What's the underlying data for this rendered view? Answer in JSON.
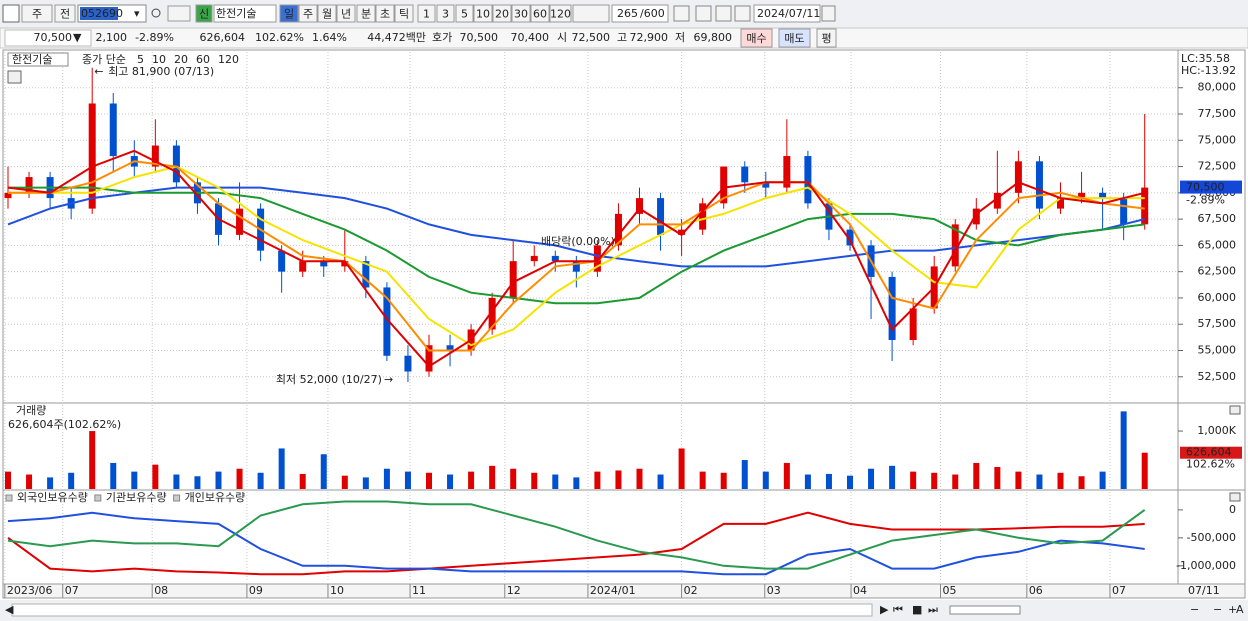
{
  "toolbar": {
    "market": "주",
    "scope": "전",
    "code": "052690",
    "badge": "신",
    "name": "한전기술",
    "periods": [
      "일",
      "주",
      "월",
      "년",
      "분",
      "초",
      "틱"
    ],
    "intervals": [
      "1",
      "3",
      "5",
      "10",
      "20",
      "30",
      "60",
      "120"
    ],
    "count": "265",
    "max": "/600",
    "date": "2024/07/11"
  },
  "info_bar": {
    "price": "70,500",
    "direction": "▼",
    "change": "2,100",
    "change_rate": "-2.89%",
    "volume": "626,604",
    "volume_ratio": "102.62%",
    "turnover": "1.64%",
    "amount": "44,472백만",
    "quote_label": "호가",
    "ask": "70,500",
    "bid": "70,400",
    "open_label": "시",
    "open": "72,500",
    "high_label": "고",
    "high": "72,900",
    "low_label": "저",
    "low": "69,800",
    "buy": "매수",
    "sell": "매도",
    "avg": "평"
  },
  "chart_data": [
    {
      "type": "candlestick",
      "title": "한전기술",
      "ma_label": "종가 단순",
      "up_color": "#e00000",
      "down_color": "#0050d0",
      "grid": true,
      "candles": [
        [
          69500,
          72500,
          68500,
          70000
        ],
        [
          70000,
          72000,
          69500,
          71500
        ],
        [
          71500,
          72000,
          68500,
          69500
        ],
        [
          69500,
          70500,
          67500,
          68500
        ],
        [
          68500,
          81900,
          68000,
          78500
        ],
        [
          78500,
          79500,
          72000,
          73500
        ],
        [
          73500,
          75000,
          71500,
          72500
        ],
        [
          72500,
          77000,
          72000,
          74500
        ],
        [
          74500,
          75000,
          70500,
          71000
        ],
        [
          71000,
          71500,
          68000,
          69000
        ],
        [
          69000,
          69500,
          65000,
          66000
        ],
        [
          66000,
          71000,
          65500,
          68500
        ],
        [
          68500,
          69000,
          63500,
          64500
        ],
        [
          64500,
          65000,
          60500,
          62500
        ],
        [
          62500,
          64500,
          62000,
          63500
        ],
        [
          63500,
          64000,
          62000,
          63000
        ],
        [
          63000,
          66500,
          62500,
          63500
        ],
        [
          63500,
          64000,
          60000,
          61000
        ],
        [
          61000,
          61500,
          54000,
          54500
        ],
        [
          54500,
          55500,
          52000,
          53000
        ],
        [
          53000,
          56500,
          52500,
          55500
        ],
        [
          55500,
          56500,
          53500,
          55000
        ],
        [
          55000,
          57500,
          54500,
          57000
        ],
        [
          57000,
          60500,
          56500,
          60000
        ],
        [
          60000,
          65500,
          59500,
          63500
        ],
        [
          63500,
          65000,
          63000,
          64000
        ],
        [
          64000,
          64500,
          62500,
          63500
        ],
        [
          63500,
          64000,
          61000,
          62500
        ],
        [
          62500,
          65500,
          62000,
          65000
        ],
        [
          65000,
          69000,
          64500,
          68000
        ],
        [
          68000,
          70500,
          67000,
          69500
        ],
        [
          69500,
          70000,
          64500,
          66000
        ],
        [
          66000,
          67500,
          64000,
          66500
        ],
        [
          66500,
          69500,
          66000,
          69000
        ],
        [
          69000,
          72500,
          68500,
          72500
        ],
        [
          72500,
          73000,
          70000,
          71000
        ],
        [
          71000,
          72000,
          69500,
          70500
        ],
        [
          70500,
          77000,
          70000,
          73500
        ],
        [
          73500,
          74000,
          68500,
          69000
        ],
        [
          69000,
          69500,
          65500,
          66500
        ],
        [
          66500,
          67000,
          64500,
          65000
        ],
        [
          65000,
          65500,
          58000,
          62000
        ],
        [
          62000,
          62500,
          54000,
          56000
        ],
        [
          56000,
          60000,
          55500,
          59000
        ],
        [
          59000,
          64000,
          58500,
          63000
        ],
        [
          63000,
          67500,
          62500,
          67000
        ],
        [
          67000,
          69500,
          66500,
          68500
        ],
        [
          68500,
          74000,
          68000,
          70000
        ],
        [
          70000,
          74000,
          69000,
          73000
        ],
        [
          73000,
          73500,
          67500,
          68500
        ],
        [
          68500,
          71000,
          68000,
          69500
        ],
        [
          69500,
          72000,
          69000,
          70000
        ],
        [
          70000,
          70500,
          66500,
          69500
        ],
        [
          69500,
          70000,
          65500,
          67000
        ],
        [
          67000,
          77500,
          66500,
          70500
        ]
      ],
      "series": [
        {
          "name": "5",
          "color": "#e00000",
          "values": [
            70500,
            70000,
            72500,
            74000,
            72000,
            67500,
            65500,
            63500,
            63500,
            58000,
            53500,
            56000,
            61500,
            63500,
            63500,
            68500,
            66000,
            70500,
            71000,
            71000,
            65500,
            57000,
            61000,
            68000,
            71000,
            69500,
            69000,
            70000
          ]
        },
        {
          "name": "10",
          "color": "#ff8c00",
          "values": [
            70000,
            70000,
            71000,
            73000,
            72500,
            69000,
            66500,
            64000,
            63500,
            60000,
            55000,
            55000,
            59500,
            63000,
            63500,
            67000,
            67000,
            69500,
            71000,
            71000,
            67000,
            60000,
            59000,
            65500,
            69500,
            70000,
            69000,
            68500
          ]
        },
        {
          "name": "20",
          "color": "#f5e400",
          "values": [
            70000,
            70000,
            70000,
            71500,
            72500,
            70500,
            67500,
            65500,
            64000,
            62500,
            58000,
            55500,
            57000,
            60500,
            63000,
            65000,
            67000,
            68000,
            69500,
            70500,
            68000,
            64500,
            61500,
            61000,
            66500,
            69500,
            69500,
            69500
          ]
        },
        {
          "name": "60",
          "color": "#1a9a30",
          "values": [
            70500,
            70500,
            70500,
            70000,
            70000,
            70000,
            69500,
            68000,
            66500,
            64500,
            62000,
            60500,
            60000,
            59500,
            59500,
            60000,
            62500,
            64500,
            66000,
            67500,
            68000,
            68000,
            67500,
            65500,
            65000,
            66000,
            66500,
            67000
          ]
        },
        {
          "name": "120",
          "color": "#2050e0",
          "values": [
            67000,
            68500,
            69500,
            70000,
            70500,
            70500,
            70500,
            70000,
            69500,
            68500,
            67000,
            66000,
            65500,
            65000,
            64000,
            63500,
            63000,
            63000,
            63000,
            63500,
            64000,
            64500,
            64500,
            65000,
            65500,
            66000,
            66500,
            67500
          ]
        }
      ],
      "ylim": [
        50100,
        83400
      ],
      "yticks": [
        {
          "value": 52500,
          "label": "52,500"
        },
        {
          "value": 55000,
          "label": "55,000"
        },
        {
          "value": 57500,
          "label": "57,500"
        },
        {
          "value": 60000,
          "label": "60,000"
        },
        {
          "value": 62500,
          "label": "62,500"
        },
        {
          "value": 65000,
          "label": "65,000"
        },
        {
          "value": 67500,
          "label": "67,500"
        },
        {
          "value": 70000,
          "label": "70,000"
        },
        {
          "value": 72500,
          "label": "72,500"
        },
        {
          "value": 75000,
          "label": "75,000"
        },
        {
          "value": 77500,
          "label": "77,500"
        },
        {
          "value": 80000,
          "label": "80,000"
        }
      ],
      "xticks": [
        {
          "value": -0.15,
          "label": "2023/06"
        },
        {
          "value": 2.6,
          "label": "07"
        },
        {
          "value": 6.85,
          "label": "08"
        },
        {
          "value": 11.35,
          "label": "09"
        },
        {
          "value": 15.2,
          "label": "10"
        },
        {
          "value": 19.1,
          "label": "11"
        },
        {
          "value": 23.6,
          "label": "12"
        },
        {
          "value": 27.55,
          "label": "2024/01"
        },
        {
          "value": 32,
          "label": "02"
        },
        {
          "value": 35.95,
          "label": "03"
        },
        {
          "value": 40.05,
          "label": "04"
        },
        {
          "value": 44.3,
          "label": "05"
        },
        {
          "value": 48.4,
          "label": "06"
        },
        {
          "value": 52.35,
          "label": "07"
        }
      ],
      "x_end_label": "07/11",
      "annotations": {
        "high": "최고 81,900 (07/13)",
        "low": "최저 52,000 (10/27)",
        "dividend": "배당락(0.00%)"
      },
      "lc": "LC:35.58",
      "hc": "HC:-13.92",
      "last_price": {
        "value": 70500,
        "label": "70,500"
      },
      "change_label": "-2.89%"
    },
    {
      "type": "bar",
      "title": "거래량",
      "subtitle": "626,604주(102.62%)",
      "values": [
        300000,
        250000,
        200000,
        280000,
        1000000,
        450000,
        300000,
        420000,
        250000,
        220000,
        300000,
        350000,
        280000,
        700000,
        260000,
        600000,
        230000,
        200000,
        350000,
        300000,
        280000,
        250000,
        300000,
        400000,
        350000,
        280000,
        250000,
        200000,
        300000,
        320000,
        350000,
        250000,
        700000,
        300000,
        280000,
        500000,
        300000,
        450000,
        250000,
        260000,
        230000,
        350000,
        400000,
        300000,
        280000,
        250000,
        450000,
        380000,
        300000,
        250000,
        280000,
        220000,
        300000,
        1340000,
        626604
      ],
      "ylim": [
        0,
        1450000
      ],
      "yticks": [
        {
          "value": 1000000,
          "label": "1,000K"
        }
      ],
      "last_value": {
        "value": 626604,
        "label": "626,604"
      },
      "last_ratio": "102.62%"
    },
    {
      "type": "line",
      "series": [
        {
          "name": "외국인보유수량",
          "color": "#e00000",
          "values": [
            -500000,
            -1050000,
            -1100000,
            -1050000,
            -1100000,
            -1120000,
            -1150000,
            -1150000,
            -1100000,
            -1100000,
            -1050000,
            -1000000,
            -950000,
            -900000,
            -850000,
            -800000,
            -700000,
            -250000,
            -250000,
            -50000,
            -250000,
            -350000,
            -350000,
            -350000,
            -330000,
            -300000,
            -300000,
            -250000
          ]
        },
        {
          "name": "기관보유수량",
          "color": "#2050e0",
          "values": [
            -200000,
            -150000,
            -50000,
            -150000,
            -200000,
            -250000,
            -700000,
            -1000000,
            -1000000,
            -1050000,
            -1050000,
            -1100000,
            -1100000,
            -1100000,
            -1100000,
            -1100000,
            -1100000,
            -1150000,
            -1150000,
            -800000,
            -700000,
            -1050000,
            -1050000,
            -850000,
            -750000,
            -550000,
            -600000,
            -700000
          ]
        },
        {
          "name": "개인보유수량",
          "color": "#2a9a50",
          "values": [
            -550000,
            -650000,
            -550000,
            -600000,
            -600000,
            -650000,
            -100000,
            100000,
            150000,
            150000,
            100000,
            100000,
            -100000,
            -300000,
            -550000,
            -750000,
            -850000,
            -1000000,
            -1050000,
            -1050000,
            -800000,
            -550000,
            -450000,
            -350000,
            -500000,
            -600000,
            -550000,
            0
          ]
        }
      ],
      "ylim": [
        -1290000,
        320000
      ],
      "yticks": [
        0,
        {
          "value": -500000,
          "label": "-500,000"
        },
        {
          "value": -1000000,
          "label": "-1,000,000"
        }
      ]
    }
  ]
}
